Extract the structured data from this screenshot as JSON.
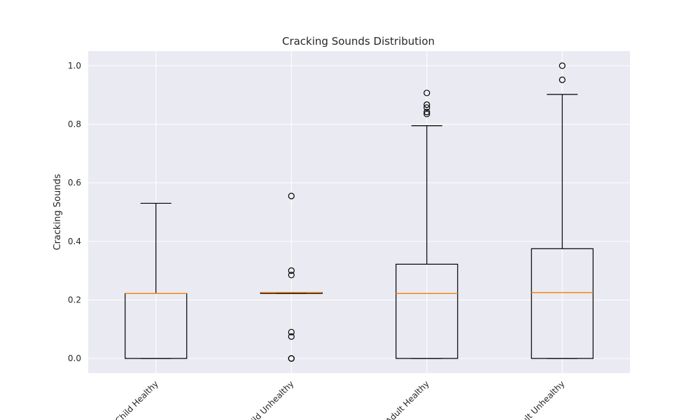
{
  "chart_data": {
    "type": "box",
    "title": "Cracking Sounds Distribution",
    "xlabel": "",
    "ylabel": "Cracking Sounds",
    "ylim": [
      -0.05,
      1.05
    ],
    "yticks": [
      "0.0",
      "0.2",
      "0.4",
      "0.6",
      "0.8",
      "1.0"
    ],
    "grid": true,
    "categories": [
      "Child Healthy",
      "Child Unhealthy",
      "Adult Healthy",
      "Adult Unhealthy"
    ],
    "boxes": [
      {
        "category": "Child Healthy",
        "whisker_low": 0.0,
        "q1": 0.0,
        "median": 0.222,
        "q3": 0.222,
        "whisker_high": 0.53,
        "outliers": []
      },
      {
        "category": "Child Unhealthy",
        "whisker_low": 0.222,
        "q1": 0.222,
        "median": 0.225,
        "q3": 0.225,
        "whisker_high": 0.225,
        "outliers": [
          0.555,
          0.3,
          0.285,
          0.09,
          0.075,
          0.0,
          0.0
        ]
      },
      {
        "category": "Adult Healthy",
        "whisker_low": 0.0,
        "q1": 0.0,
        "median": 0.222,
        "q3": 0.322,
        "whisker_high": 0.795,
        "outliers": [
          0.907,
          0.867,
          0.857,
          0.842,
          0.835
        ]
      },
      {
        "category": "Adult Unhealthy",
        "whisker_low": 0.0,
        "q1": 0.0,
        "median": 0.225,
        "q3": 0.375,
        "whisker_high": 0.902,
        "outliers": [
          1.0,
          0.952
        ]
      }
    ],
    "colors": {
      "background": "#eaeaf2",
      "grid": "#ffffff",
      "box": "#000000",
      "median": "#f58518"
    }
  }
}
